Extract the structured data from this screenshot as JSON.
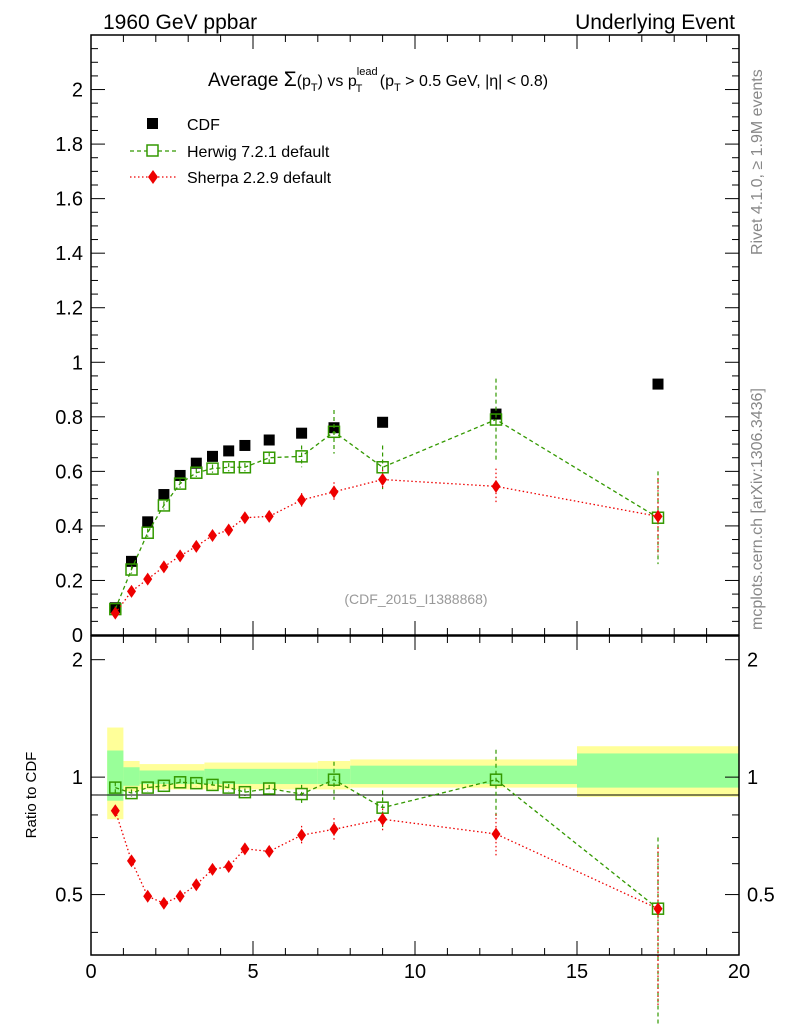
{
  "header": {
    "left": "1960 GeV ppbar",
    "right": "Underlying Event",
    "side_top": "Rivet 4.1.0, ≥ 1.9M events",
    "side_bottom": "mcplots.cern.ch [arXiv:1306.3436]",
    "watermark": "(CDF_2015_I1388868)"
  },
  "chart_data": [
    {
      "type": "scatter",
      "panel": "main",
      "title": "Average Σ(pT) vs pT lead (pT > 0.5 GeV, |η| < 0.8)",
      "title_parts": {
        "pre": "Average ",
        "sigma": "Σ",
        "lp": "(p",
        "sub1": "T",
        "rp": ") vs p",
        "sup": "lead",
        "sub2": "T",
        "post": " (p",
        "sub3": "T",
        "tail": " > 0.5 GeV, |η| < 0.8)"
      },
      "xlim": [
        0,
        20
      ],
      "ylim": [
        0,
        2.2
      ],
      "yticks": [
        0,
        0.2,
        0.4,
        0.6,
        0.8,
        1,
        1.2,
        1.4,
        1.6,
        1.8,
        2
      ],
      "ytick_labels": [
        "0",
        "0.2",
        "0.4",
        "0.6",
        "0.8",
        "1",
        "1.2",
        "1.4",
        "1.6",
        "1.8",
        "2"
      ],
      "legend": {
        "position": "top-left",
        "entries": [
          "CDF",
          "Herwig 7.2.1 default",
          "Sherpa 2.2.9 default"
        ]
      },
      "x": [
        0.75,
        1.25,
        1.75,
        2.25,
        2.75,
        3.25,
        3.75,
        4.25,
        4.75,
        5.5,
        6.5,
        7.5,
        9,
        12.5,
        17.5
      ],
      "series": [
        {
          "name": "CDF",
          "color": "#000000",
          "marker": "filled-square",
          "values": [
            0.1,
            0.27,
            0.415,
            0.515,
            0.585,
            0.63,
            0.655,
            0.675,
            0.695,
            0.715,
            0.74,
            0.76,
            0.78,
            0.81,
            0.92
          ]
        },
        {
          "name": "Herwig 7.2.1 default",
          "color": "#339900",
          "marker": "open-square",
          "line": "dashed",
          "values": [
            0.095,
            0.24,
            0.375,
            0.475,
            0.555,
            0.595,
            0.61,
            0.615,
            0.615,
            0.65,
            0.655,
            0.745,
            0.615,
            0.79,
            0.43
          ],
          "errors": [
            0.01,
            0.015,
            0.015,
            0.015,
            0.015,
            0.015,
            0.015,
            0.015,
            0.015,
            0.02,
            0.04,
            0.08,
            0.08,
            0.15,
            0.17
          ]
        },
        {
          "name": "Sherpa 2.2.9 default",
          "color": "#ee0000",
          "marker": "filled-diamond",
          "line": "dotted",
          "values": [
            0.08,
            0.16,
            0.205,
            0.25,
            0.29,
            0.325,
            0.365,
            0.385,
            0.43,
            0.435,
            0.495,
            0.525,
            0.57,
            0.545,
            0.435
          ],
          "errors": [
            0.008,
            0.01,
            0.01,
            0.01,
            0.01,
            0.012,
            0.012,
            0.012,
            0.015,
            0.015,
            0.025,
            0.035,
            0.035,
            0.065,
            0.14
          ]
        }
      ]
    },
    {
      "type": "scatter",
      "panel": "ratio",
      "ylabel": "Ratio to CDF",
      "xlim": [
        0,
        20
      ],
      "ylim": [
        0.35,
        2.3
      ],
      "yticks": [
        0.5,
        1,
        2
      ],
      "ytick_labels": [
        "0.5",
        "1",
        "2"
      ],
      "xticks": [
        0,
        5,
        10,
        15,
        20
      ],
      "xtick_labels": [
        "0",
        "5",
        "10",
        "15",
        "20"
      ],
      "band_bins": [
        {
          "lo": 0.5,
          "hi": 1.0,
          "yellow": [
            0.78,
            1.34
          ],
          "green": [
            0.87,
            1.17
          ]
        },
        {
          "lo": 1.0,
          "hi": 1.5,
          "yellow": [
            0.92,
            1.1
          ],
          "green": [
            0.95,
            1.06
          ]
        },
        {
          "lo": 1.5,
          "hi": 3.5,
          "yellow": [
            0.93,
            1.08
          ],
          "green": [
            0.96,
            1.04
          ]
        },
        {
          "lo": 3.5,
          "hi": 7.0,
          "yellow": [
            0.93,
            1.09
          ],
          "green": [
            0.96,
            1.05
          ]
        },
        {
          "lo": 7.0,
          "hi": 8.0,
          "yellow": [
            0.93,
            1.1
          ],
          "green": [
            0.96,
            1.05
          ]
        },
        {
          "lo": 8.0,
          "hi": 15.0,
          "yellow": [
            0.94,
            1.11
          ],
          "green": [
            0.96,
            1.07
          ]
        },
        {
          "lo": 15.0,
          "hi": 20.0,
          "yellow": [
            0.89,
            1.2
          ],
          "green": [
            0.94,
            1.15
          ]
        }
      ],
      "x": [
        0.75,
        1.25,
        1.75,
        2.25,
        2.75,
        3.25,
        3.75,
        4.25,
        4.75,
        5.5,
        6.5,
        7.5,
        9,
        12.5,
        17.5
      ],
      "series": [
        {
          "name": "Herwig 7.2.1 default",
          "color": "#339900",
          "marker": "open-square",
          "line": "dashed",
          "values": [
            0.94,
            0.91,
            0.94,
            0.95,
            0.97,
            0.965,
            0.955,
            0.94,
            0.915,
            0.935,
            0.905,
            0.985,
            0.835,
            0.985,
            0.46
          ],
          "errors": [
            0.03,
            0.02,
            0.02,
            0.02,
            0.02,
            0.02,
            0.02,
            0.02,
            0.02,
            0.02,
            0.05,
            0.11,
            0.09,
            0.19,
            0.24
          ]
        },
        {
          "name": "Sherpa 2.2.9 default",
          "color": "#ee0000",
          "marker": "filled-diamond",
          "line": "dotted",
          "values": [
            0.82,
            0.61,
            0.495,
            0.475,
            0.495,
            0.53,
            0.58,
            0.59,
            0.655,
            0.645,
            0.71,
            0.735,
            0.78,
            0.715,
            0.46
          ],
          "errors": [
            0.02,
            0.015,
            0.015,
            0.015,
            0.015,
            0.015,
            0.015,
            0.015,
            0.02,
            0.02,
            0.04,
            0.05,
            0.05,
            0.09,
            0.2
          ]
        }
      ]
    }
  ]
}
